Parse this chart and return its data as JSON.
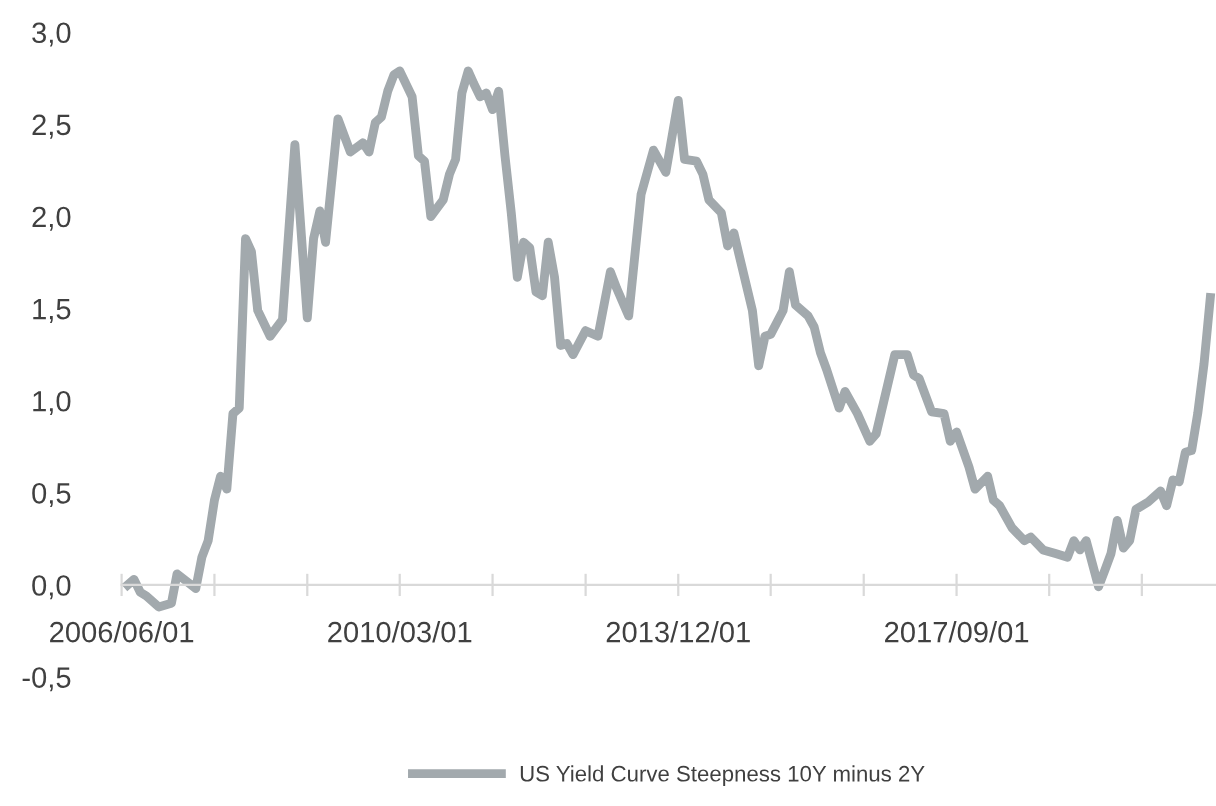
{
  "chart_data": {
    "type": "line",
    "legend": "bottom",
    "grid": false,
    "x": [
      "2006-07",
      "2006-08",
      "2006-09",
      "2006-10",
      "2006-12",
      "2007-02",
      "2007-03",
      "2007-06",
      "2007-07",
      "2007-08",
      "2007-09",
      "2007-10",
      "2007-11",
      "2007-12",
      "2008-01",
      "2008-02",
      "2008-03",
      "2008-04",
      "2008-06",
      "2008-08",
      "2008-10",
      "2008-12",
      "2009-01",
      "2009-02",
      "2009-03",
      "2009-05",
      "2009-07",
      "2009-09",
      "2009-10",
      "2009-11",
      "2009-12",
      "2010-01",
      "2010-02",
      "2010-03",
      "2010-05",
      "2010-06",
      "2010-07",
      "2010-08",
      "2010-10",
      "2010-11",
      "2010-12",
      "2011-01",
      "2011-02",
      "2011-03",
      "2011-04",
      "2011-05",
      "2011-06",
      "2011-07",
      "2011-08",
      "2011-09",
      "2011-10",
      "2011-11",
      "2011-12",
      "2012-01",
      "2012-02",
      "2012-03",
      "2012-04",
      "2012-05",
      "2012-06",
      "2012-07",
      "2012-09",
      "2012-11",
      "2013-01",
      "2013-02",
      "2013-04",
      "2013-06",
      "2013-08",
      "2013-10",
      "2013-12",
      "2014-01",
      "2014-03",
      "2014-04",
      "2014-05",
      "2014-07",
      "2014-08",
      "2014-09",
      "2014-10",
      "2014-12",
      "2015-01",
      "2015-02",
      "2015-03",
      "2015-05",
      "2015-06",
      "2015-07",
      "2015-09",
      "2015-10",
      "2015-11",
      "2015-12",
      "2016-02",
      "2016-03",
      "2016-05",
      "2016-07",
      "2016-08",
      "2016-11",
      "2017-01",
      "2017-02",
      "2017-03",
      "2017-05",
      "2017-07",
      "2017-08",
      "2017-09",
      "2017-11",
      "2017-12",
      "2018-02",
      "2018-03",
      "2018-04",
      "2018-06",
      "2018-08",
      "2018-09",
      "2018-11",
      "2019-01",
      "2019-03",
      "2019-04",
      "2019-05",
      "2019-06",
      "2019-08",
      "2019-09",
      "2019-10",
      "2019-11",
      "2019-12",
      "2020-01",
      "2020-02",
      "2020-04",
      "2020-06",
      "2020-07",
      "2020-08",
      "2020-09",
      "2020-10",
      "2020-11",
      "2020-12",
      "2021-01",
      "2021-02"
    ],
    "series": [
      {
        "name": "US Yield Curve Steepness 10Y minus 2Y",
        "color": "#a2a9ad",
        "values": [
          0.0,
          0.03,
          -0.04,
          -0.06,
          -0.12,
          -0.1,
          0.06,
          -0.02,
          0.15,
          0.24,
          0.46,
          0.59,
          0.52,
          0.93,
          0.96,
          1.88,
          1.81,
          1.49,
          1.35,
          1.44,
          2.39,
          1.45,
          1.88,
          2.03,
          1.86,
          2.53,
          2.35,
          2.4,
          2.35,
          2.51,
          2.54,
          2.68,
          2.77,
          2.79,
          2.65,
          2.33,
          2.3,
          2.0,
          2.09,
          2.23,
          2.31,
          2.67,
          2.79,
          2.72,
          2.65,
          2.67,
          2.58,
          2.68,
          2.33,
          2.02,
          1.67,
          1.86,
          1.83,
          1.59,
          1.57,
          1.86,
          1.67,
          1.3,
          1.31,
          1.25,
          1.38,
          1.35,
          1.7,
          1.61,
          1.46,
          2.12,
          2.36,
          2.24,
          2.63,
          2.31,
          2.3,
          2.23,
          2.09,
          2.02,
          1.84,
          1.91,
          1.77,
          1.49,
          1.19,
          1.35,
          1.36,
          1.49,
          1.7,
          1.52,
          1.46,
          1.4,
          1.26,
          1.17,
          0.96,
          1.05,
          0.93,
          0.78,
          0.82,
          1.25,
          1.25,
          1.14,
          1.12,
          0.94,
          0.93,
          0.78,
          0.83,
          0.64,
          0.52,
          0.59,
          0.46,
          0.43,
          0.31,
          0.24,
          0.26,
          0.19,
          0.17,
          0.15,
          0.24,
          0.19,
          0.24,
          -0.01,
          0.08,
          0.17,
          0.35,
          0.2,
          0.24,
          0.41,
          0.45,
          0.51,
          0.43,
          0.57,
          0.56,
          0.72,
          0.73,
          0.93,
          1.2,
          1.56
        ]
      }
    ],
    "xlim": [
      "2006-06",
      "2021-03"
    ],
    "xticks": [
      {
        "value": "2006-06",
        "label": "2006/06/01"
      },
      {
        "value": "2007-09",
        "label": null
      },
      {
        "value": "2008-12",
        "label": null
      },
      {
        "value": "2010-03",
        "label": "2010/03/01"
      },
      {
        "value": "2011-06",
        "label": null
      },
      {
        "value": "2012-09",
        "label": null
      },
      {
        "value": "2013-12",
        "label": "2013/12/01"
      },
      {
        "value": "2015-03",
        "label": null
      },
      {
        "value": "2016-06",
        "label": null
      },
      {
        "value": "2017-09",
        "label": "2017/09/01"
      },
      {
        "value": "2018-12",
        "label": null
      },
      {
        "value": "2020-03",
        "label": null
      }
    ],
    "ylim": [
      -0.5,
      3.0
    ],
    "yticks": [
      {
        "value": -0.5,
        "label": "-0,5"
      },
      {
        "value": 0,
        "label": "0,0"
      },
      {
        "value": 0.5,
        "label": "0,5"
      },
      {
        "value": 1.0,
        "label": "1,0"
      },
      {
        "value": 1.5,
        "label": "1,5"
      },
      {
        "value": 2.0,
        "label": "2,0"
      },
      {
        "value": 2.5,
        "label": "2,5"
      },
      {
        "value": 3.0,
        "label": "3,0"
      }
    ]
  }
}
